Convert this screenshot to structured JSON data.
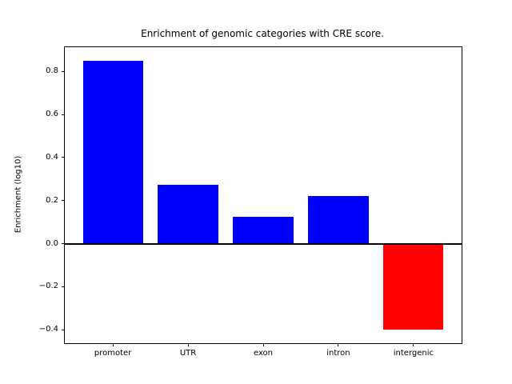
{
  "chart_data": {
    "type": "bar",
    "title": "Enrichment of genomic categories with CRE score.",
    "xlabel": "",
    "ylabel": "Enrichment (log10)",
    "categories": [
      "promoter",
      "UTR",
      "exon",
      "intron",
      "intergenic"
    ],
    "values": [
      0.85,
      0.275,
      0.125,
      0.22,
      -0.4
    ],
    "bar_colors": [
      "#0000ff",
      "#0000ff",
      "#0000ff",
      "#0000ff",
      "#ff0000"
    ],
    "positive_color": "#0000ff",
    "negative_color": "#ff0000",
    "bar_width": 0.8,
    "ylim": [
      -0.4625,
      0.9125
    ],
    "xlim": [
      -0.64,
      4.64
    ],
    "yticks": [
      -0.4,
      -0.2,
      0.0,
      0.2,
      0.4,
      0.6,
      0.8
    ],
    "ytick_labels": [
      "−0.4",
      "−0.2",
      "0.0",
      "0.2",
      "0.4",
      "0.6",
      "0.8"
    ],
    "zero_line": true,
    "grid": false,
    "legend": null,
    "axis_color": "#000000",
    "background_color": "#ffffff"
  }
}
